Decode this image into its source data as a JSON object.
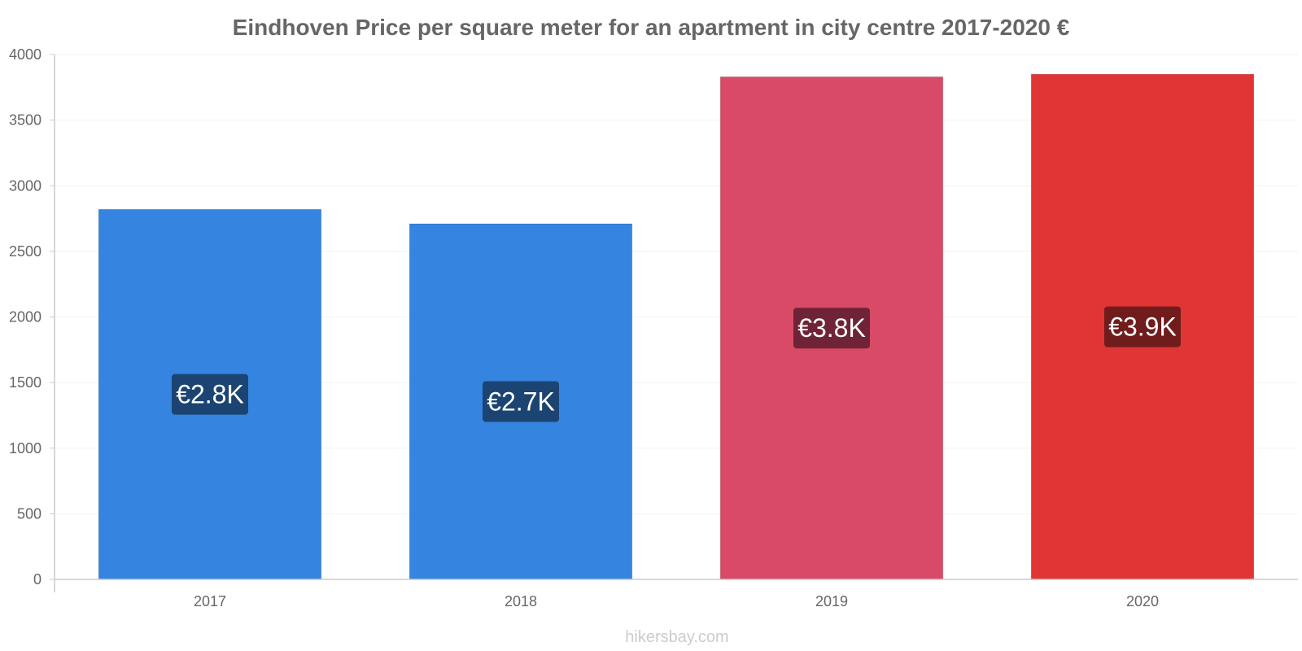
{
  "chart_data": {
    "type": "bar",
    "title": "Eindhoven Price per square meter for an apartment in city centre 2017-2020 €",
    "xlabel": "",
    "ylabel": "",
    "categories": [
      "2017",
      "2018",
      "2019",
      "2020"
    ],
    "values": [
      2820,
      2710,
      3830,
      3850
    ],
    "data_labels": [
      "€2.8K",
      "€2.7K",
      "€3.8K",
      "€3.9K"
    ],
    "ylim": [
      0,
      4000
    ],
    "yticks": [
      0,
      500,
      1000,
      1500,
      2000,
      2500,
      3000,
      3500,
      4000
    ],
    "grid": true,
    "legend": "none",
    "bar_colors": [
      "#3584e0",
      "#3584e0",
      "#d84a67",
      "#e03535"
    ],
    "label_bg_colors": [
      "#1c4472",
      "#1c4472",
      "#6e2336",
      "#701c1c"
    ]
  },
  "footer": {
    "source": "hikersbay.com"
  }
}
